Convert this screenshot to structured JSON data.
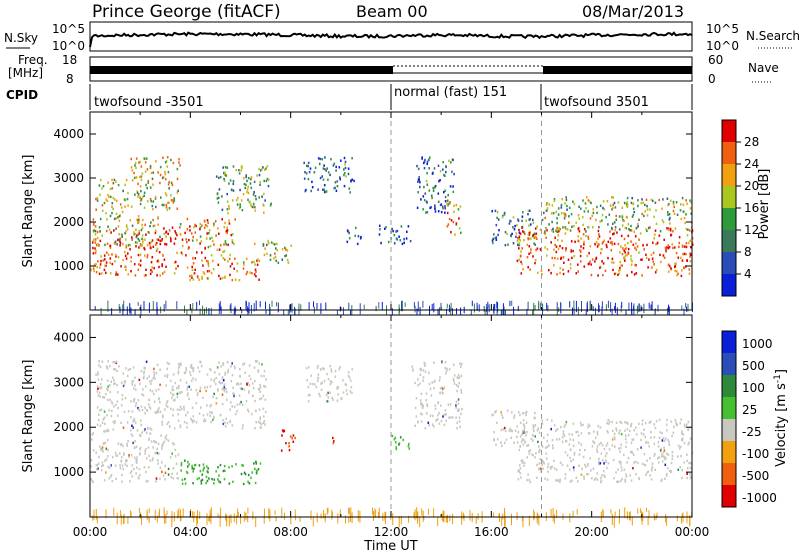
{
  "header": {
    "title": "Prince George (fitACF)",
    "beam": "Beam 00",
    "date": "08/Mar/2013"
  },
  "noise_panel": {
    "left_label": "N.Sky",
    "right_label": "N.Search",
    "left_ticks": [
      "10^5",
      "10^0"
    ],
    "right_ticks": [
      "10^5",
      "10^0"
    ]
  },
  "freq_panel": {
    "left_label_1": "Freq.",
    "left_label_2": "[MHz]",
    "right_label": "Nave",
    "left_ticks": [
      "18",
      "8"
    ],
    "right_ticks": [
      "60",
      "0"
    ]
  },
  "cpid": {
    "label": "CPID",
    "segments": [
      {
        "name": "twofsound -3501",
        "start_h": 0
      },
      {
        "name": "normal (fast) 151",
        "start_h": 12
      },
      {
        "name": "twofsound 3501",
        "start_h": 18
      }
    ]
  },
  "colors": {
    "power": [
      "#0a1fd8",
      "#2a4db8",
      "#3a7a5a",
      "#2e9a3a",
      "#a8c820",
      "#f0a010",
      "#f06010",
      "#e00000"
    ],
    "velocity": [
      "#0a1fd8",
      "#2a4db8",
      "#2e8a3a",
      "#44c030",
      "#c8c8c0",
      "#f0a010",
      "#f06010",
      "#e00000"
    ],
    "ground": "#c8c8c0"
  },
  "chart_data": [
    {
      "type": "heatmap",
      "name": "power",
      "ylabel": "Slant Range [km]",
      "ylim": [
        0,
        4500
      ],
      "xlim": [
        0,
        24
      ],
      "yticks": [
        1000,
        2000,
        3000,
        4000
      ],
      "colorbar": {
        "label": "Power [dB]",
        "ticks": [
          "4",
          "8",
          "12",
          "16",
          "20",
          "24",
          "28"
        ],
        "range": [
          0,
          32
        ]
      },
      "regions": [
        {
          "t0": 0.0,
          "t1": 3.5,
          "r0": 800,
          "r1": 1900,
          "level": 0.85
        },
        {
          "t0": 0.0,
          "t1": 2.8,
          "r0": 1500,
          "r1": 2200,
          "level": 0.55
        },
        {
          "t0": 0.2,
          "t1": 1.5,
          "r0": 2200,
          "r1": 3000,
          "level": 0.55
        },
        {
          "t0": 1.6,
          "t1": 3.6,
          "r0": 2300,
          "r1": 3500,
          "level": 0.6
        },
        {
          "t0": 3.5,
          "t1": 5.8,
          "r0": 1200,
          "r1": 2100,
          "level": 0.7
        },
        {
          "t0": 3.8,
          "t1": 6.8,
          "r0": 700,
          "r1": 1200,
          "level": 0.75
        },
        {
          "t0": 5.0,
          "t1": 7.2,
          "r0": 2200,
          "r1": 3300,
          "level": 0.45
        },
        {
          "t0": 6.5,
          "t1": 8.0,
          "r0": 1100,
          "r1": 1600,
          "level": 0.5
        },
        {
          "t0": 8.5,
          "t1": 10.5,
          "r0": 2700,
          "r1": 3500,
          "level": 0.25
        },
        {
          "t0": 10.2,
          "t1": 10.8,
          "r0": 1500,
          "r1": 1900,
          "level": 0.2
        },
        {
          "t0": 11.5,
          "t1": 12.8,
          "r0": 1500,
          "r1": 1950,
          "level": 0.2
        },
        {
          "t0": 13.0,
          "t1": 14.5,
          "r0": 2200,
          "r1": 3500,
          "level": 0.25
        },
        {
          "t0": 14.2,
          "t1": 14.8,
          "r0": 1700,
          "r1": 2500,
          "level": 0.7
        },
        {
          "t0": 16.0,
          "t1": 17.8,
          "r0": 1500,
          "r1": 2300,
          "level": 0.3
        },
        {
          "t0": 17.0,
          "t1": 24.0,
          "r0": 800,
          "r1": 1900,
          "level": 0.85
        },
        {
          "t0": 18.0,
          "t1": 24.0,
          "r0": 1800,
          "r1": 2600,
          "level": 0.5
        }
      ]
    },
    {
      "type": "heatmap",
      "name": "velocity",
      "ylabel": "Slant Range [km]",
      "xlabel": "Time UT",
      "ylim": [
        0,
        4500
      ],
      "xlim": [
        0,
        24
      ],
      "yticks": [
        1000,
        2000,
        3000,
        4000
      ],
      "xticks": [
        "00:00",
        "04:00",
        "08:00",
        "12:00",
        "16:00",
        "20:00",
        "00:00"
      ],
      "colorbar": {
        "label": "Velocity [m s",
        "ticks": [
          "1000",
          "500",
          "100",
          "25",
          "-25",
          "-100",
          "-500",
          "-1000"
        ]
      },
      "regions": [
        {
          "t0": 0.0,
          "t1": 3.5,
          "r0": 800,
          "r1": 1900,
          "kind": "ground"
        },
        {
          "t0": 0.2,
          "t1": 3.6,
          "r0": 1900,
          "r1": 3500,
          "kind": "ground"
        },
        {
          "t0": 3.5,
          "t1": 7.0,
          "r0": 2000,
          "r1": 3500,
          "kind": "ground"
        },
        {
          "t0": 3.6,
          "t1": 6.8,
          "r0": 750,
          "r1": 1300,
          "kind": "green"
        },
        {
          "t0": 7.6,
          "t1": 8.2,
          "r0": 1500,
          "r1": 2000,
          "kind": "red"
        },
        {
          "t0": 8.6,
          "t1": 10.5,
          "r0": 2600,
          "r1": 3400,
          "kind": "ground"
        },
        {
          "t0": 9.5,
          "t1": 9.8,
          "r0": 1600,
          "r1": 1800,
          "kind": "red"
        },
        {
          "t0": 12.0,
          "t1": 12.8,
          "r0": 1500,
          "r1": 1850,
          "kind": "green"
        },
        {
          "t0": 12.8,
          "t1": 14.8,
          "r0": 2000,
          "r1": 3500,
          "kind": "ground"
        },
        {
          "t0": 16.0,
          "t1": 17.8,
          "r0": 1600,
          "r1": 2400,
          "kind": "ground"
        },
        {
          "t0": 17.0,
          "t1": 24.0,
          "r0": 800,
          "r1": 2200,
          "kind": "ground"
        }
      ]
    }
  ]
}
